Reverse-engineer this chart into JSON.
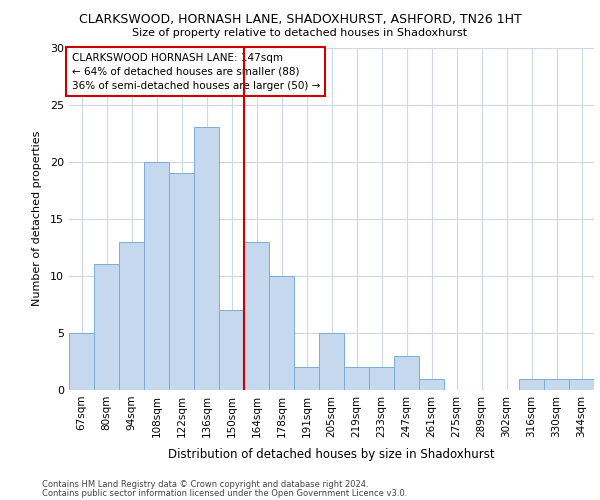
{
  "title1": "CLARKSWOOD, HORNASH LANE, SHADOXHURST, ASHFORD, TN26 1HT",
  "title2": "Size of property relative to detached houses in Shadoxhurst",
  "xlabel": "Distribution of detached houses by size in Shadoxhurst",
  "ylabel": "Number of detached properties",
  "categories": [
    "67sqm",
    "80sqm",
    "94sqm",
    "108sqm",
    "122sqm",
    "136sqm",
    "150sqm",
    "164sqm",
    "178sqm",
    "191sqm",
    "205sqm",
    "219sqm",
    "233sqm",
    "247sqm",
    "261sqm",
    "275sqm",
    "289sqm",
    "302sqm",
    "316sqm",
    "330sqm",
    "344sqm"
  ],
  "values": [
    5,
    11,
    13,
    20,
    19,
    23,
    7,
    13,
    10,
    2,
    5,
    2,
    2,
    3,
    1,
    0,
    0,
    0,
    1,
    1,
    1
  ],
  "bar_color": "#c5d8ee",
  "bar_edge_color": "#7aadd4",
  "vline_x_index": 6,
  "vline_color": "#cc0000",
  "annotation_title": "CLARKSWOOD HORNASH LANE: 147sqm",
  "annotation_line2": "← 64% of detached houses are smaller (88)",
  "annotation_line3": "36% of semi-detached houses are larger (50) →",
  "annotation_box_color": "#ffffff",
  "annotation_border_color": "#cc0000",
  "ylim": [
    0,
    30
  ],
  "yticks": [
    0,
    5,
    10,
    15,
    20,
    25,
    30
  ],
  "footer1": "Contains HM Land Registry data © Crown copyright and database right 2024.",
  "footer2": "Contains public sector information licensed under the Open Government Licence v3.0.",
  "bg_color": "#ffffff",
  "grid_color": "#ccd6e8"
}
